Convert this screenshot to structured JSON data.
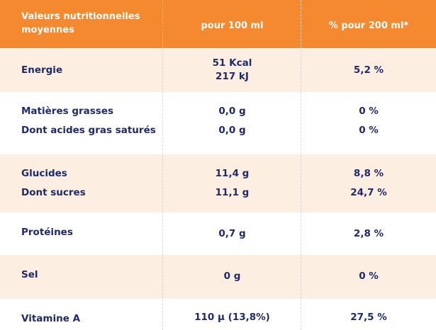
{
  "header": {
    "col1": "Valeurs nutritionnelles moyennes",
    "col2": "pour 100 ml",
    "col3": "% pour 200 ml*"
  },
  "rows": {
    "energie": {
      "label": "Energie",
      "per100_line1": "51 Kcal",
      "per100_line2": "217 kJ",
      "pct": "5,2 %"
    },
    "matieres_grasses": {
      "label": "Matières grasses",
      "per100": "0,0 g",
      "pct": "0 %"
    },
    "acides_gras": {
      "label": "Dont acides gras saturés",
      "per100": "0,0 g",
      "pct": "0 %"
    },
    "glucides": {
      "label": "Glucides",
      "per100": "11,4 g",
      "pct": "8,8 %"
    },
    "sucres": {
      "label": "Dont sucres",
      "per100": "11,1 g",
      "pct": "24,7 %"
    },
    "proteines": {
      "label": "Protéines",
      "per100": "0,7 g",
      "pct": "2,8 %"
    },
    "sel": {
      "label": "Sel",
      "per100": "0 g",
      "pct": "0 %"
    },
    "vitamine_a": {
      "label": "Vitamine A",
      "per100": "110 µ (13,8%)",
      "pct": "27,5 %"
    }
  },
  "colors": {
    "header_bg": "#f5892f",
    "band_bg": "#fdeee2",
    "text": "#1f2a6b"
  }
}
